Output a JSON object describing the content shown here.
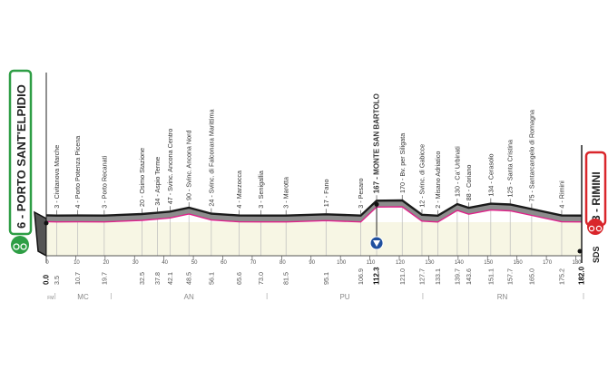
{
  "start": {
    "label": "6 - PORTO SANT'ELPIDIO",
    "color": "#2e9e45",
    "icon": "cyclist-icon"
  },
  "finish": {
    "label": "3 - RIMINI",
    "color": "#d9262b",
    "icon": "cyclist-icon"
  },
  "sponsor": "SDS",
  "chart_data": {
    "type": "area",
    "title": "",
    "xlabel": "",
    "ylabel": "",
    "xlim": [
      0,
      182
    ],
    "x_ticks": [
      0,
      10,
      20,
      30,
      40,
      50,
      60,
      70,
      80,
      90,
      100,
      110,
      120,
      130,
      140,
      150,
      160,
      170,
      180
    ],
    "waypoints": [
      {
        "km": 0.0,
        "km_label": "0.0",
        "alt": 6,
        "name": "",
        "bold": true
      },
      {
        "km": 3.5,
        "km_label": "3.5",
        "alt": 3,
        "name": "3 - Civitanova Marche"
      },
      {
        "km": 10.7,
        "km_label": "10.7",
        "alt": 4,
        "name": "4 - Porto Potenza Picena"
      },
      {
        "km": 19.7,
        "km_label": "19.7",
        "alt": 3,
        "name": "3 - Porto Recanati"
      },
      {
        "km": 32.5,
        "km_label": "32.5",
        "alt": 20,
        "name": "20 - Osimo Stazione"
      },
      {
        "km": 37.8,
        "km_label": "37.8",
        "alt": 34,
        "name": "34 - Aspio Terme"
      },
      {
        "km": 42.1,
        "km_label": "42.1",
        "alt": 47,
        "name": "47 - Svinc. Ancona Centro"
      },
      {
        "km": 48.5,
        "km_label": "48.5",
        "alt": 90,
        "name": "90 - Svinc. Ancona Nord"
      },
      {
        "km": 56.1,
        "km_label": "56.1",
        "alt": 24,
        "name": "24 - Svinc. di Falconara Marittima"
      },
      {
        "km": 65.6,
        "km_label": "65.6",
        "alt": 4,
        "name": "4 - Marzocca"
      },
      {
        "km": 73.0,
        "km_label": "73.0",
        "alt": 3,
        "name": "3 - Senigallia"
      },
      {
        "km": 81.5,
        "km_label": "81.5",
        "alt": 3,
        "name": "3 - Marotta"
      },
      {
        "km": 95.1,
        "km_label": "95.1",
        "alt": 17,
        "name": "17 - Fano"
      },
      {
        "km": 106.9,
        "km_label": "106.9",
        "alt": 3,
        "name": "3 - Pesaro"
      },
      {
        "km": 112.3,
        "km_label": "112.3",
        "alt": 167,
        "name": "167 - MONTE SAN BARTOLO",
        "bold": true,
        "kom": true
      },
      {
        "km": 121.0,
        "km_label": "121.0",
        "alt": 170,
        "name": "170 - Bv. per Siligata"
      },
      {
        "km": 127.7,
        "km_label": "127.7",
        "alt": 12,
        "name": "12 - Svinc. di Gabicce"
      },
      {
        "km": 133.1,
        "km_label": "133.1",
        "alt": 2,
        "name": "2 - Misano Adriatico"
      },
      {
        "km": 139.7,
        "km_label": "139.7",
        "alt": 130,
        "name": "130 - Ca' Urbinati"
      },
      {
        "km": 143.6,
        "km_label": "143.6",
        "alt": 88,
        "name": "88 - Coriano"
      },
      {
        "km": 151.1,
        "km_label": "151.1",
        "alt": 134,
        "name": "134 - Cerasolo"
      },
      {
        "km": 157.7,
        "km_label": "157.7",
        "alt": 125,
        "name": "125 - Santa Cristina"
      },
      {
        "km": 165.0,
        "km_label": "165.0",
        "alt": 75,
        "name": "75 - Santarcangelo di Romagna"
      },
      {
        "km": 175.2,
        "km_label": "175.2",
        "alt": 4,
        "name": "4 - Rimini"
      },
      {
        "km": 182.0,
        "km_label": "182.0",
        "alt": 3,
        "name": "",
        "bold": true
      }
    ],
    "provinces": [
      {
        "code": "FM",
        "from": 0,
        "to": 3
      },
      {
        "code": "MC",
        "from": 3,
        "to": 22
      },
      {
        "code": "AN",
        "from": 22,
        "to": 75
      },
      {
        "code": "PU",
        "from": 75,
        "to": 128
      },
      {
        "code": "RN",
        "from": 128,
        "to": 182
      }
    ],
    "colors": {
      "top": "#1a1a1a",
      "face": "#8c8c8c",
      "road": "#e0218a",
      "ground": "#f7f6e4",
      "kom": "#1f4f9e"
    }
  }
}
